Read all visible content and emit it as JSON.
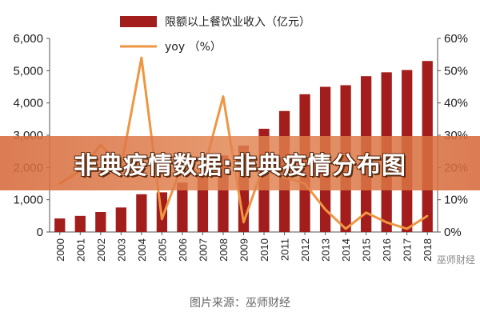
{
  "banner": {
    "title": "非典疫情数据:非典疫情分布图"
  },
  "source": "图片来源：巫师财经",
  "watermark": "巫师财经",
  "chart_data": {
    "type": "bar+line",
    "categories": [
      "2000",
      "2001",
      "2002",
      "2003",
      "2004",
      "2005",
      "2006",
      "2007",
      "2008",
      "2009",
      "2010",
      "2011",
      "2012",
      "2013",
      "2014",
      "2015",
      "2016",
      "2017",
      "2018"
    ],
    "series": [
      {
        "name": "限额以上餐饮业收入（亿元）",
        "type": "bar",
        "axis": "left",
        "color": "#a31d1d",
        "values": [
          420,
          500,
          620,
          760,
          1170,
          1230,
          1530,
          1800,
          2370,
          2680,
          3200,
          3750,
          4270,
          4500,
          4550,
          4830,
          4950,
          5020,
          5300
        ]
      },
      {
        "name": "yoy （%）",
        "type": "line",
        "axis": "right",
        "color": "#ef9642",
        "values": [
          15,
          19,
          27,
          20,
          54,
          4,
          21,
          18,
          42,
          3,
          21,
          17,
          15,
          7,
          1,
          6,
          3,
          1,
          5
        ]
      }
    ],
    "yleft": {
      "lim": [
        0,
        6000
      ],
      "ticks": [
        "0",
        "1,000",
        "2,000",
        "3,000",
        "4,000",
        "5,000",
        "6,000"
      ]
    },
    "yright": {
      "lim": [
        0,
        60
      ],
      "ticks": [
        "0%",
        "10%",
        "20%",
        "30%",
        "40%",
        "50%",
        "60%"
      ]
    },
    "legend": "top"
  }
}
